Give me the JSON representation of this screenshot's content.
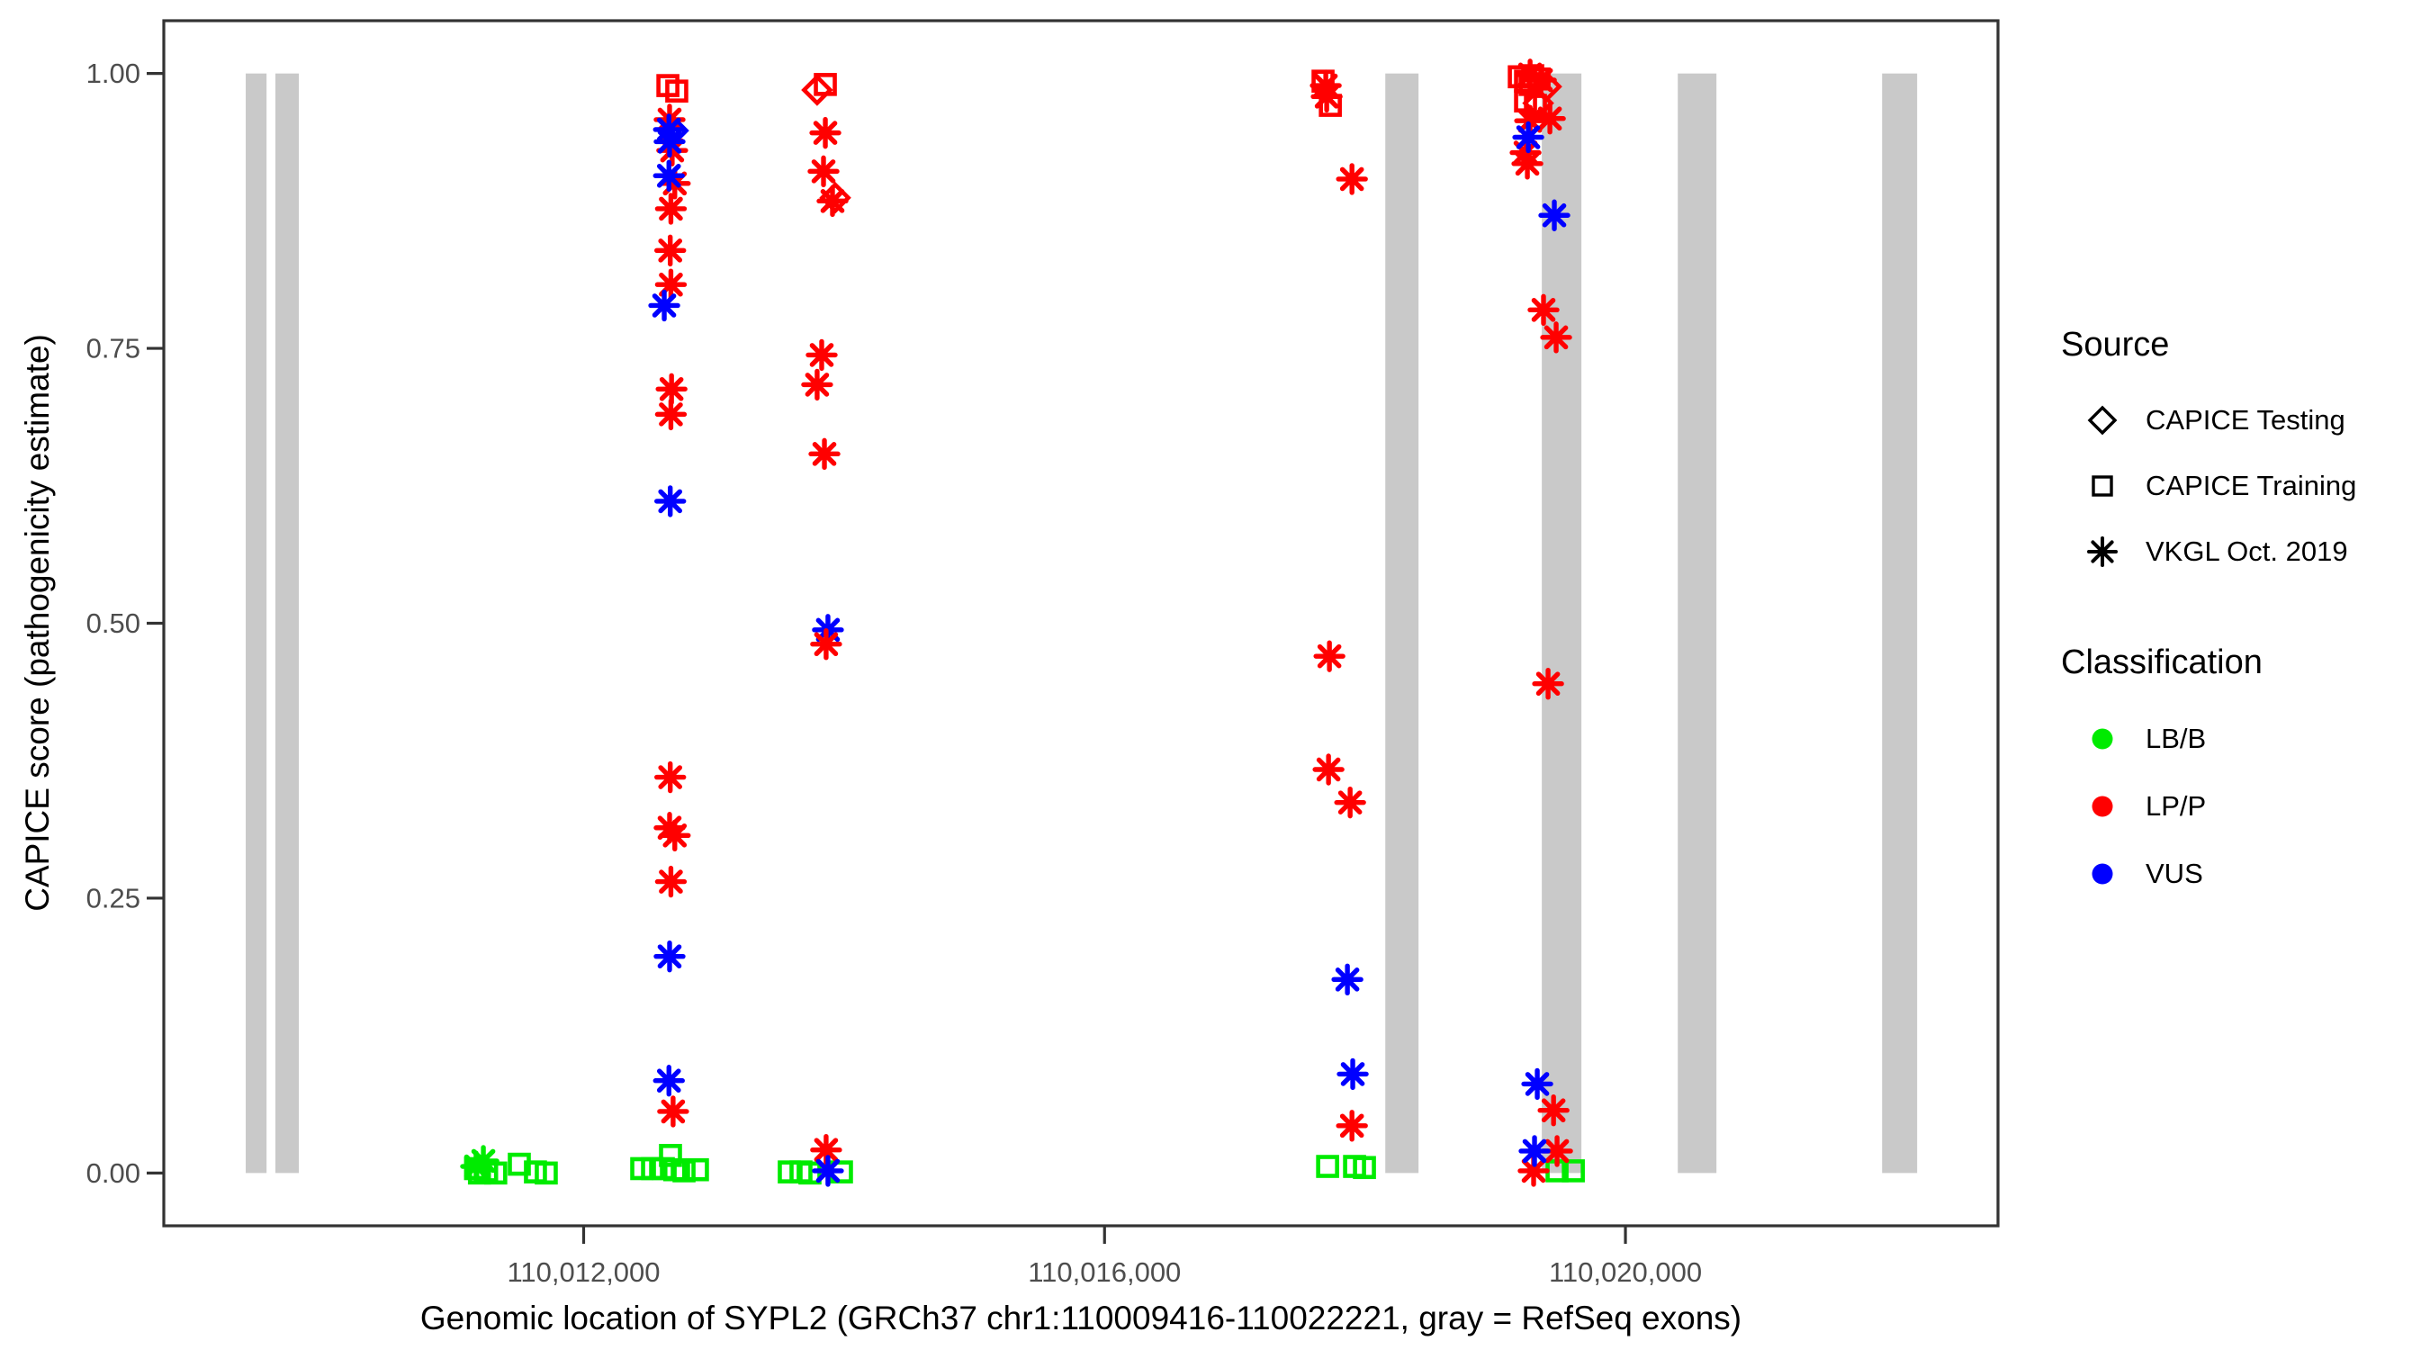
{
  "y_axis": {
    "title": "CAPICE score (pathogenicity estimate)",
    "ticks": [
      {
        "label": "0.00",
        "value": 0.0
      },
      {
        "label": "0.25",
        "value": 0.25
      },
      {
        "label": "0.50",
        "value": 0.5
      },
      {
        "label": "0.75",
        "value": 0.75
      },
      {
        "label": "1.00",
        "value": 1.0
      }
    ]
  },
  "x_axis": {
    "title": "Genomic location of SYPL2 (GRCh37 chr1:110009416-110022221, gray = RefSeq exons)",
    "ticks": [
      {
        "label": "110,012,000",
        "bp": 110012000
      },
      {
        "label": "110,016,000",
        "bp": 110016000
      },
      {
        "label": "110,020,000",
        "bp": 110020000
      }
    ]
  },
  "legend_source": {
    "title": "Source",
    "items": [
      {
        "label": "CAPICE Testing",
        "marker": "open-diamond"
      },
      {
        "label": "CAPICE Training",
        "marker": "open-square"
      },
      {
        "label": "VKGL Oct. 2019",
        "marker": "asterisk"
      }
    ]
  },
  "legend_classification": {
    "title": "Classification",
    "items": [
      {
        "label": "LB/B",
        "color": "#00EB00"
      },
      {
        "label": "LP/P",
        "color": "#FF0000"
      },
      {
        "label": "VUS",
        "color": "#0000FF"
      }
    ]
  },
  "chart_data": {
    "type": "scatter",
    "title": "",
    "xlabel": "Genomic location of SYPL2 (GRCh37 chr1:110009416-110022221, gray = RefSeq exons)",
    "ylabel": "CAPICE score (pathogenicity estimate)",
    "xlim": [
      110008776,
      110022861
    ],
    "ylim": [
      -0.048,
      1.048
    ],
    "grid": false,
    "legend_position": "right",
    "panel_border_color": "#333333",
    "tick_label_color": "#4D4D4D",
    "exon_color": "#C9C9C9",
    "exons_bp": [
      [
        110009405,
        110009565
      ],
      [
        110009633,
        110009813
      ],
      [
        110018156,
        110018411
      ],
      [
        110019358,
        110019662
      ],
      [
        110020402,
        110020699
      ],
      [
        110021971,
        110022240
      ]
    ],
    "classification_colors": {
      "LB/B": "#00EB00",
      "LP/P": "#FF0000",
      "VUS": "#0000FF"
    },
    "source_markers": {
      "testing": "open-diamond",
      "training": "open-square",
      "vkgl": "asterisk"
    },
    "point_format": [
      "bp",
      "score",
      "classification",
      "source"
    ],
    "points": [
      [
        110011230,
        0.011,
        "LB/B",
        "vkgl"
      ],
      [
        110011174,
        0.006,
        "LB/B",
        "vkgl"
      ],
      [
        110011170,
        0.004,
        "LB/B",
        "training"
      ],
      [
        110011255,
        0.002,
        "LB/B",
        "training"
      ],
      [
        110011325,
        0.0,
        "LB/B",
        "training"
      ],
      [
        110011200,
        0.0,
        "LB/B",
        "training"
      ],
      [
        110011506,
        0.008,
        "LB/B",
        "training"
      ],
      [
        110011630,
        0.001,
        "LB/B",
        "training"
      ],
      [
        110011713,
        0.0,
        "LB/B",
        "training"
      ],
      [
        110012647,
        0.989,
        "LP/P",
        "training"
      ],
      [
        110012715,
        0.984,
        "LP/P",
        "training"
      ],
      [
        110012660,
        0.958,
        "LP/P",
        "vkgl"
      ],
      [
        110012680,
        0.93,
        "LP/P",
        "vkgl"
      ],
      [
        110012700,
        0.9,
        "LP/P",
        "vkgl"
      ],
      [
        110012670,
        0.877,
        "LP/P",
        "vkgl"
      ],
      [
        110012665,
        0.839,
        "LP/P",
        "vkgl"
      ],
      [
        110012670,
        0.808,
        "LP/P",
        "vkgl"
      ],
      [
        110012675,
        0.713,
        "LP/P",
        "vkgl"
      ],
      [
        110012670,
        0.69,
        "LP/P",
        "vkgl"
      ],
      [
        110012665,
        0.36,
        "LP/P",
        "vkgl"
      ],
      [
        110012660,
        0.314,
        "LP/P",
        "vkgl"
      ],
      [
        110012700,
        0.307,
        "LP/P",
        "vkgl"
      ],
      [
        110012670,
        0.265,
        "LP/P",
        "vkgl"
      ],
      [
        110012687,
        0.056,
        "LP/P",
        "vkgl"
      ],
      [
        110012655,
        0.949,
        "VUS",
        "vkgl"
      ],
      [
        110012688,
        0.948,
        "VUS",
        "testing"
      ],
      [
        110012660,
        0.938,
        "VUS",
        "vkgl"
      ],
      [
        110012655,
        0.907,
        "VUS",
        "vkgl"
      ],
      [
        110012619,
        0.789,
        "VUS",
        "vkgl"
      ],
      [
        110012665,
        0.611,
        "VUS",
        "vkgl"
      ],
      [
        110012660,
        0.197,
        "VUS",
        "vkgl"
      ],
      [
        110012655,
        0.084,
        "VUS",
        "vkgl"
      ],
      [
        110012446,
        0.004,
        "LB/B",
        "training"
      ],
      [
        110012529,
        0.004,
        "LB/B",
        "training"
      ],
      [
        110012612,
        0.004,
        "LB/B",
        "training"
      ],
      [
        110012667,
        0.016,
        "LB/B",
        "training"
      ],
      [
        110012700,
        0.003,
        "LB/B",
        "training"
      ],
      [
        110012771,
        0.002,
        "LB/B",
        "training"
      ],
      [
        110012874,
        0.003,
        "LB/B",
        "training"
      ],
      [
        110013856,
        0.99,
        "LP/P",
        "training"
      ],
      [
        110013793,
        0.985,
        "LP/P",
        "testing"
      ],
      [
        110013856,
        0.946,
        "LP/P",
        "vkgl"
      ],
      [
        110013842,
        0.911,
        "LP/P",
        "vkgl"
      ],
      [
        110013932,
        0.887,
        "LP/P",
        "testing"
      ],
      [
        110013911,
        0.884,
        "LP/P",
        "vkgl"
      ],
      [
        110013828,
        0.744,
        "LP/P",
        "vkgl"
      ],
      [
        110013793,
        0.717,
        "LP/P",
        "vkgl"
      ],
      [
        110013849,
        0.654,
        "LP/P",
        "vkgl"
      ],
      [
        110013876,
        0.494,
        "VUS",
        "vkgl"
      ],
      [
        110013862,
        0.481,
        "LP/P",
        "vkgl"
      ],
      [
        110013862,
        0.021,
        "LP/P",
        "vkgl"
      ],
      [
        110013876,
        0.002,
        "VUS",
        "vkgl"
      ],
      [
        110013579,
        0.001,
        "LB/B",
        "training"
      ],
      [
        110013669,
        0.001,
        "LB/B",
        "training"
      ],
      [
        110013738,
        0.0,
        "LB/B",
        "training"
      ],
      [
        110013980,
        0.001,
        "LB/B",
        "training"
      ],
      [
        110017678,
        0.993,
        "LP/P",
        "training"
      ],
      [
        110017699,
        0.989,
        "LP/P",
        "vkgl"
      ],
      [
        110017734,
        0.971,
        "LP/P",
        "training"
      ],
      [
        110017706,
        0.979,
        "LP/P",
        "vkgl"
      ],
      [
        110017900,
        0.904,
        "LP/P",
        "vkgl"
      ],
      [
        110017727,
        0.47,
        "LP/P",
        "vkgl"
      ],
      [
        110017720,
        0.367,
        "LP/P",
        "vkgl"
      ],
      [
        110017886,
        0.337,
        "LP/P",
        "vkgl"
      ],
      [
        110017865,
        0.176,
        "VUS",
        "vkgl"
      ],
      [
        110017906,
        0.09,
        "VUS",
        "vkgl"
      ],
      [
        110017900,
        0.043,
        "LP/P",
        "vkgl"
      ],
      [
        110017713,
        0.006,
        "LB/B",
        "training"
      ],
      [
        110017920,
        0.006,
        "LB/B",
        "training"
      ],
      [
        110017996,
        0.005,
        "LB/B",
        "training"
      ],
      [
        110019185,
        0.997,
        "LP/P",
        "training"
      ],
      [
        110019233,
        0.993,
        "LP/P",
        "training"
      ],
      [
        110019288,
        0.998,
        "LP/P",
        "training"
      ],
      [
        110019337,
        0.995,
        "LP/P",
        "training"
      ],
      [
        110019268,
        0.99,
        "LP/P",
        "training"
      ],
      [
        110019233,
        0.975,
        "LP/P",
        "training"
      ],
      [
        110019309,
        0.971,
        "LP/P",
        "training"
      ],
      [
        110019392,
        0.988,
        "LP/P",
        "testing"
      ],
      [
        110019330,
        0.973,
        "LP/P",
        "testing"
      ],
      [
        110019268,
        0.999,
        "LP/P",
        "vkgl"
      ],
      [
        110019351,
        0.994,
        "LP/P",
        "vkgl"
      ],
      [
        110019268,
        0.957,
        "LP/P",
        "vkgl"
      ],
      [
        110019420,
        0.959,
        "LP/P",
        "vkgl"
      ],
      [
        110019233,
        0.928,
        "LP/P",
        "vkgl"
      ],
      [
        110019247,
        0.918,
        "LP/P",
        "vkgl"
      ],
      [
        110019371,
        0.785,
        "LP/P",
        "vkgl"
      ],
      [
        110019468,
        0.76,
        "LP/P",
        "vkgl"
      ],
      [
        110019406,
        0.445,
        "LP/P",
        "vkgl"
      ],
      [
        110019448,
        0.057,
        "LP/P",
        "vkgl"
      ],
      [
        110019475,
        0.02,
        "LP/P",
        "vkgl"
      ],
      [
        110019295,
        0.002,
        "LP/P",
        "vkgl"
      ],
      [
        110019254,
        0.942,
        "VUS",
        "vkgl"
      ],
      [
        110019454,
        0.871,
        "VUS",
        "vkgl"
      ],
      [
        110019323,
        0.081,
        "VUS",
        "vkgl"
      ],
      [
        110019302,
        0.02,
        "VUS",
        "vkgl"
      ],
      [
        110019475,
        0.002,
        "LB/B",
        "training"
      ],
      [
        110019600,
        0.002,
        "LB/B",
        "training"
      ]
    ]
  }
}
